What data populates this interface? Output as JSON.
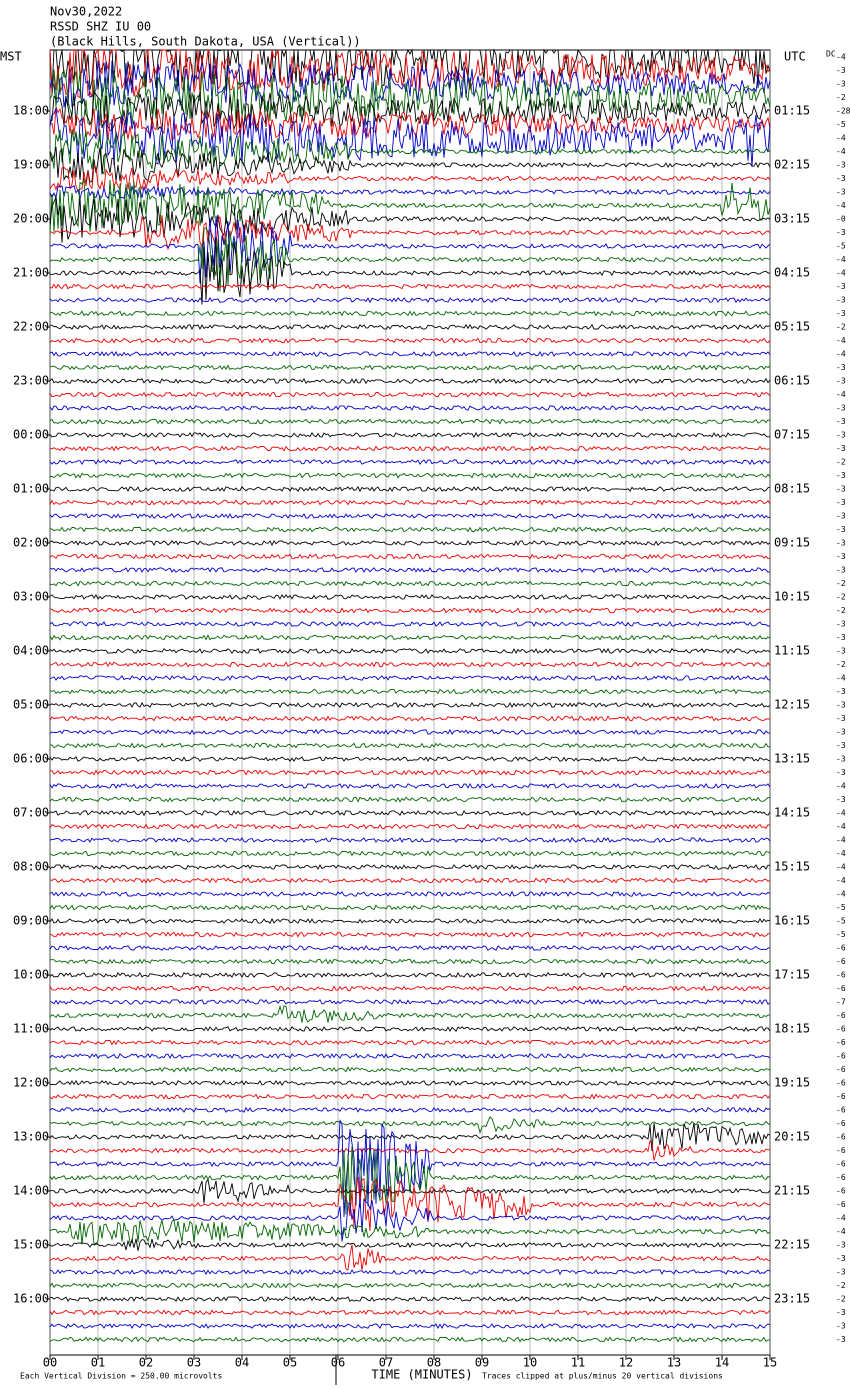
{
  "header": {
    "date": "Nov30,2022",
    "station": "RSSD SHZ IU 00",
    "location": "(Black Hills, South Dakota, USA (Vertical))"
  },
  "left_axis": {
    "title": "MST",
    "labels": [
      "18:00",
      "19:00",
      "20:00",
      "21:00",
      "22:00",
      "23:00",
      "00:00",
      "01:00",
      "02:00",
      "03:00",
      "04:00",
      "05:00",
      "06:00",
      "07:00",
      "08:00",
      "09:00",
      "10:00",
      "11:00",
      "12:00",
      "13:00",
      "14:00",
      "15:00",
      "16:00"
    ]
  },
  "right_axis": {
    "title": "UTC",
    "labels": [
      "01:15",
      "02:15",
      "03:15",
      "04:15",
      "05:15",
      "06:15",
      "07:15",
      "08:15",
      "09:15",
      "10:15",
      "11:15",
      "12:15",
      "13:15",
      "14:15",
      "15:15",
      "16:15",
      "17:15",
      "18:15",
      "19:15",
      "20:15",
      "21:15",
      "22:15",
      "23:15"
    ]
  },
  "dc_column": {
    "title": "DC",
    "offsets": [
      "-4",
      "-3",
      "-3",
      "-2",
      "-28",
      "-5",
      "-4",
      "-4",
      "-3",
      "-3",
      "-3",
      "-4",
      "-0",
      "-3",
      "-5",
      "-4",
      "-4",
      "-3",
      "-3",
      "-3",
      "-2",
      "-4",
      "-4",
      "-3",
      "-3",
      "-4",
      "-3",
      "-3",
      "-3",
      "-3",
      "-2",
      "-3",
      "-3",
      "-3",
      "-3",
      "-3",
      "-3",
      "-3",
      "-3",
      "-2",
      "-2",
      "-2",
      "-3",
      "-3",
      "-3",
      "-2",
      "-4",
      "-3",
      "-3",
      "-3",
      "-3",
      "-3",
      "-3",
      "-3",
      "-4",
      "-3",
      "-4",
      "-4",
      "-4",
      "-4",
      "-4",
      "-4",
      "-4",
      "-5",
      "-5",
      "-5",
      "-6",
      "-6",
      "-6",
      "-6",
      "-7",
      "-6",
      "-6",
      "-6",
      "-6",
      "-6",
      "-6",
      "-6",
      "-6",
      "-6",
      "-6",
      "-6",
      "-6",
      "-6",
      "-6",
      "-6",
      "-4",
      "-4",
      "-3",
      "-3",
      "-3",
      "-2",
      "-2",
      "-3",
      "-3",
      "-3"
    ]
  },
  "x_axis": {
    "labels": [
      "00",
      "01",
      "02",
      "03",
      "04",
      "05",
      "06",
      "07",
      "08",
      "09",
      "10",
      "11",
      "12",
      "13",
      "14",
      "15"
    ],
    "title": "TIME (MINUTES)"
  },
  "footer": {
    "scale": "Each Vertical Division =  250.00 microvolts",
    "clip": "Traces clipped at plus/minus 20 vertical divisions"
  }
}
